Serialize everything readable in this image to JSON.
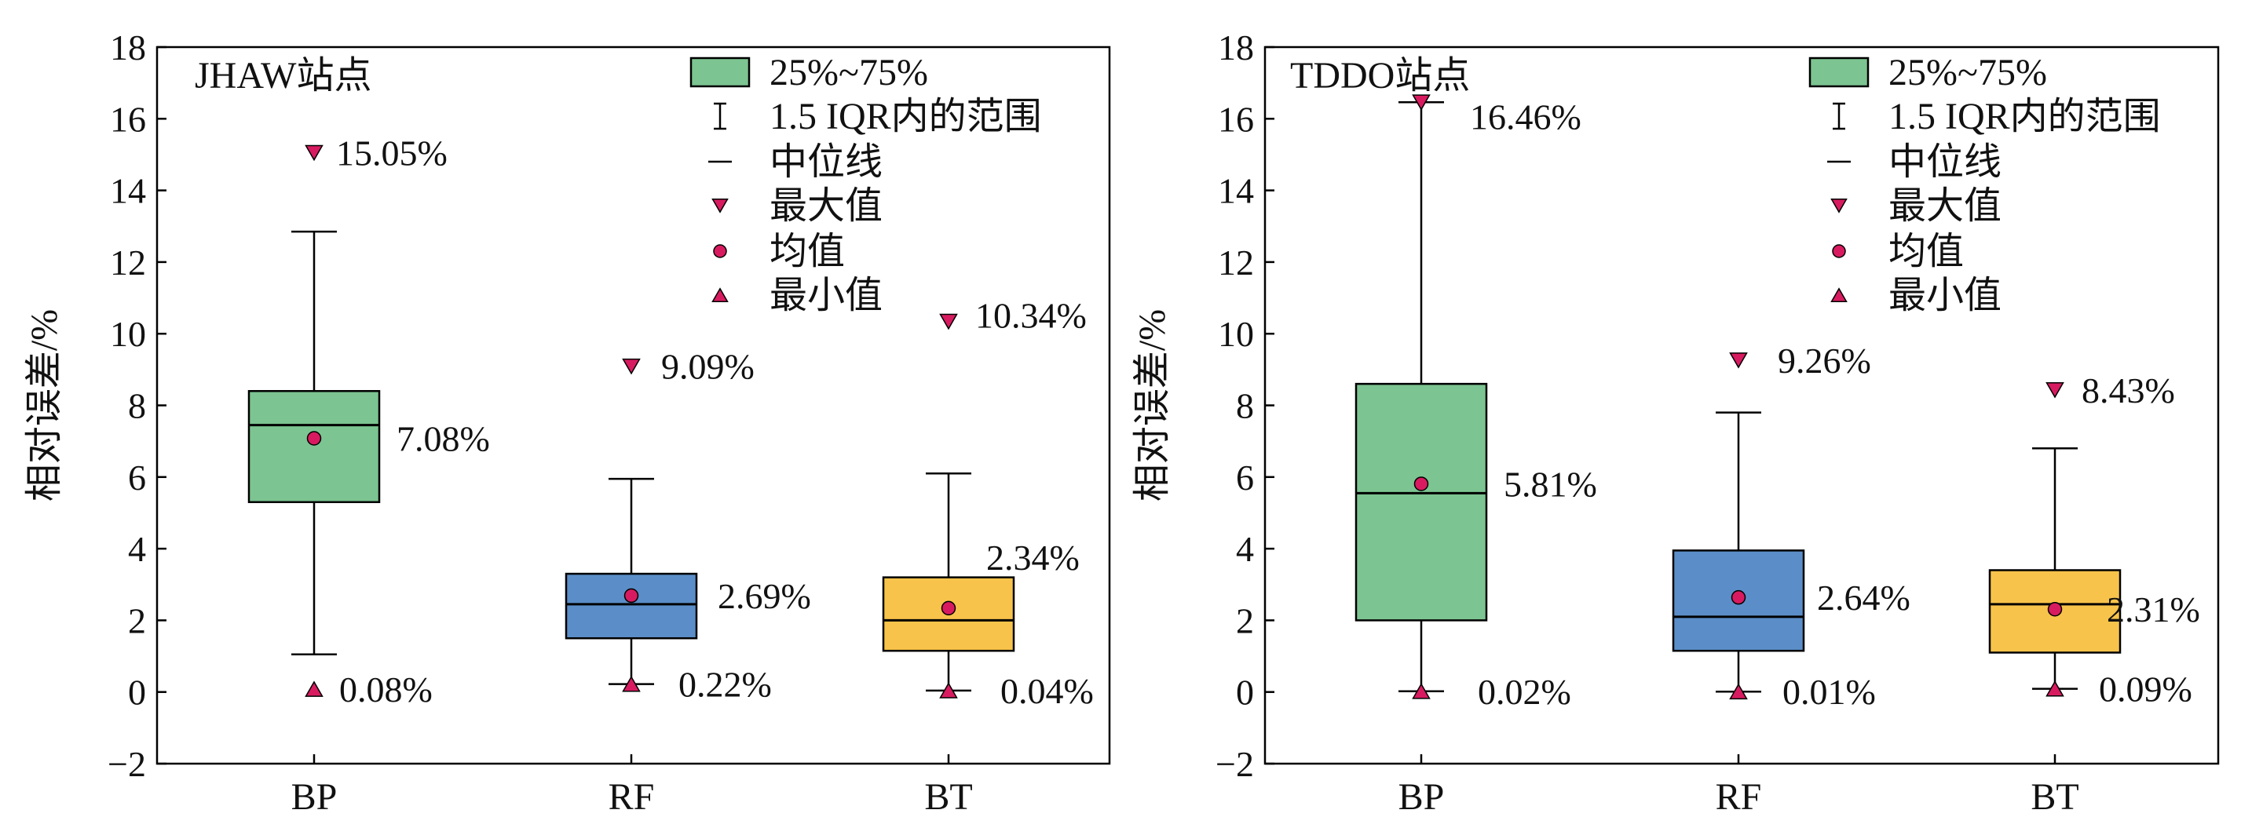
{
  "chart_data": [
    {
      "type": "box",
      "title": "JHAW站点",
      "ylabel": "相对误差/%",
      "ylim": [
        -2,
        18
      ],
      "yticks": [
        -2,
        0,
        2,
        4,
        6,
        8,
        10,
        12,
        14,
        16,
        18
      ],
      "categories": [
        "BP",
        "RF",
        "BT"
      ],
      "boxes": [
        {
          "name": "BP",
          "color": "#7cc491",
          "q1": 5.3,
          "median": 7.45,
          "q3": 8.4,
          "whisker_low": 1.05,
          "whisker_high": 12.85,
          "mean": 7.08,
          "max": 15.05,
          "min": 0.08,
          "max_label": "15.05%",
          "mean_label": "7.08%",
          "min_label": "0.08%"
        },
        {
          "name": "RF",
          "color": "#5b8ec8",
          "q1": 1.5,
          "median": 2.45,
          "q3": 3.3,
          "whisker_low": 0.22,
          "whisker_high": 5.95,
          "mean": 2.69,
          "max": 9.09,
          "min": 0.22,
          "max_label": "9.09%",
          "mean_label": "2.69%",
          "min_label": "0.22%"
        },
        {
          "name": "BT",
          "color": "#f8c34a",
          "q1": 1.15,
          "median": 2.0,
          "q3": 3.2,
          "whisker_low": 0.04,
          "whisker_high": 6.1,
          "mean": 2.34,
          "max": 10.34,
          "min": 0.04,
          "max_label": "10.34%",
          "mean_label": "2.34%",
          "min_label": "0.04%"
        }
      ]
    },
    {
      "type": "box",
      "title": "TDDO站点",
      "ylabel": "相对误差/%",
      "ylim": [
        -2,
        18
      ],
      "yticks": [
        -2,
        0,
        2,
        4,
        6,
        8,
        10,
        12,
        14,
        16,
        18
      ],
      "categories": [
        "BP",
        "RF",
        "BT"
      ],
      "boxes": [
        {
          "name": "BP",
          "color": "#7cc491",
          "q1": 2.0,
          "median": 5.55,
          "q3": 8.6,
          "whisker_low": 0.02,
          "whisker_high": 16.46,
          "mean": 5.81,
          "max": 16.46,
          "min": 0.02,
          "max_label": "16.46%",
          "mean_label": "5.81%",
          "min_label": "0.02%"
        },
        {
          "name": "RF",
          "color": "#5b8ec8",
          "q1": 1.15,
          "median": 2.1,
          "q3": 3.95,
          "whisker_low": 0.01,
          "whisker_high": 7.8,
          "mean": 2.64,
          "max": 9.26,
          "min": 0.01,
          "max_label": "9.26%",
          "mean_label": "2.64%",
          "min_label": "0.01%"
        },
        {
          "name": "BT",
          "color": "#f8c34a",
          "q1": 1.1,
          "median": 2.45,
          "q3": 3.4,
          "whisker_low": 0.09,
          "whisker_high": 6.8,
          "mean": 2.31,
          "max": 8.43,
          "min": 0.09,
          "max_label": "8.43%",
          "mean_label": "2.31%",
          "min_label": "0.09%"
        }
      ]
    }
  ],
  "legend": {
    "items": [
      {
        "key": "iqr",
        "label": "25%~75%",
        "color": "#7cc491"
      },
      {
        "key": "range",
        "label": "1.5 IQR内的范围"
      },
      {
        "key": "median",
        "label": "中位线"
      },
      {
        "key": "max",
        "label": "最大值",
        "color": "#d81b60"
      },
      {
        "key": "mean",
        "label": "均值",
        "color": "#d81b60"
      },
      {
        "key": "min",
        "label": "最小值",
        "color": "#d81b60"
      }
    ]
  },
  "marker_color": "#d81b60"
}
